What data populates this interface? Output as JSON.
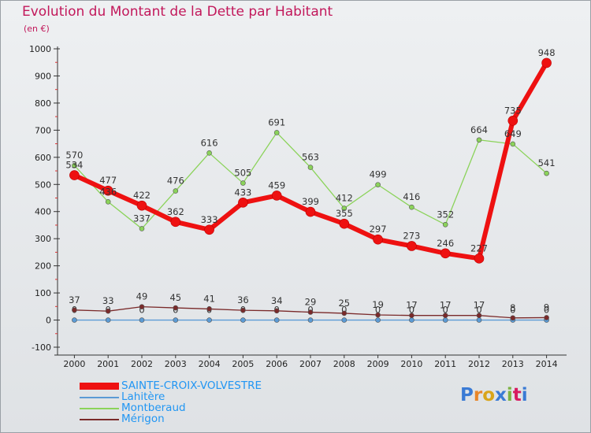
{
  "header": {
    "title": "Evolution du Montant de la Dette par Habitant",
    "subtitle": "(en €)"
  },
  "brand": "Proxiti",
  "chart_data": {
    "type": "line",
    "title": "Evolution du Montant de la Dette par Habitant",
    "subtitle": "(en €)",
    "xlabel": "",
    "ylabel": "",
    "x": [
      2000,
      2001,
      2002,
      2003,
      2004,
      2005,
      2006,
      2007,
      2008,
      2009,
      2010,
      2011,
      2012,
      2013,
      2014
    ],
    "ylim": [
      -100,
      1000
    ],
    "yticks": [
      -100,
      0,
      100,
      200,
      300,
      400,
      500,
      600,
      700,
      800,
      900,
      1000
    ],
    "grid": false,
    "legend_position": "bottom-left",
    "series": [
      {
        "name": "SAINTE-CROIX-VOLVESTRE",
        "color": "#ee1111",
        "values": [
          534,
          477,
          422,
          362,
          333,
          433,
          459,
          399,
          355,
          297,
          273,
          246,
          227,
          735,
          948
        ]
      },
      {
        "name": "Lahitère",
        "color": "#5b9bd5",
        "values": [
          0,
          0,
          0,
          0,
          0,
          0,
          0,
          0,
          0,
          0,
          0,
          0,
          0,
          0,
          0
        ]
      },
      {
        "name": "Montberaud",
        "color": "#8bd35a",
        "values": [
          570,
          436,
          337,
          476,
          616,
          505,
          691,
          563,
          412,
          499,
          416,
          352,
          664,
          649,
          541
        ]
      },
      {
        "name": "Mérigon",
        "color": "#7a2a2a",
        "values": [
          37,
          33,
          49,
          45,
          41,
          36,
          34,
          29,
          25,
          19,
          17,
          17,
          17,
          8,
          9
        ]
      }
    ]
  }
}
